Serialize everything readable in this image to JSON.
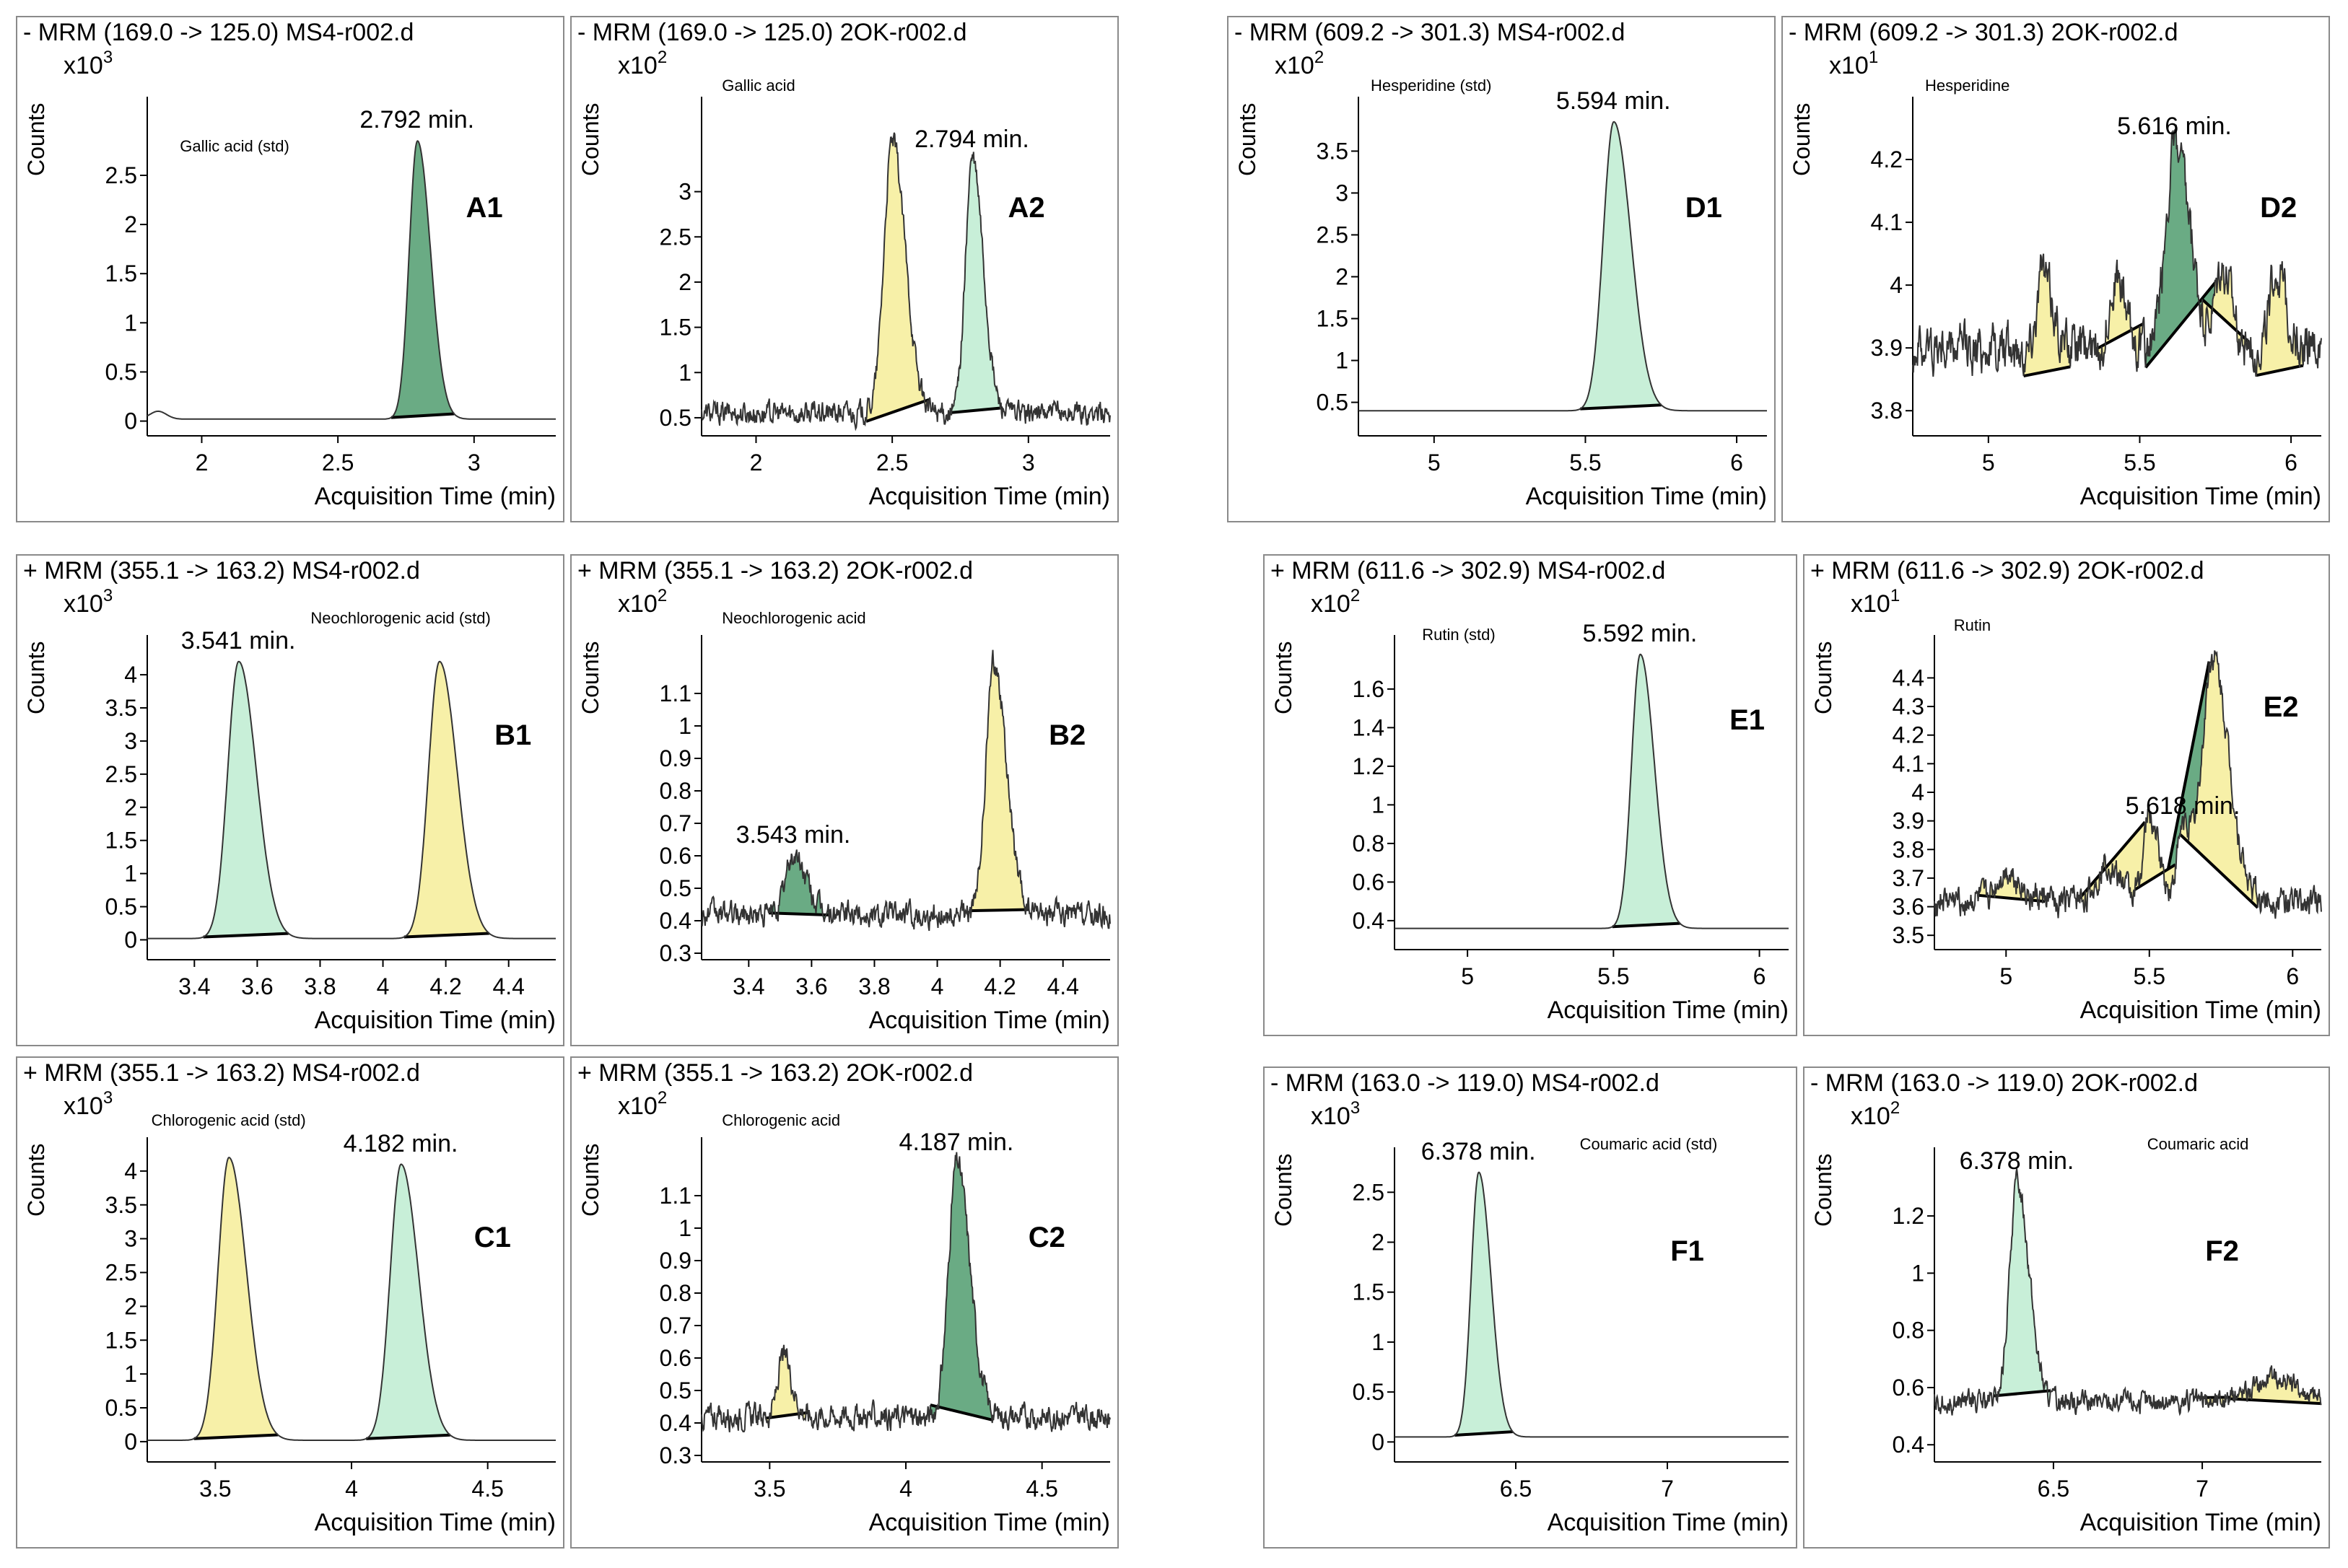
{
  "colors": {
    "yellow_fill": "#f7f0a8",
    "light_green_fill": "#c8efd8",
    "dark_green_fill": "#6aab84",
    "axis": "#000000",
    "trace": "#333333"
  },
  "chart_data": [
    {
      "id": "A1",
      "type": "line",
      "title": "- MRM (169.0 -> 125.0) MS4-r002.d",
      "compound": "Gallic acid (std)",
      "ylabel": "Counts",
      "multiplier": "x10",
      "exponent": "3",
      "xlabel": "Acquisition Time (min)",
      "xlim": [
        1.8,
        3.3
      ],
      "ylim": [
        -0.15,
        3.3
      ],
      "xticks": [
        2,
        2.5,
        3
      ],
      "yticks": [
        0,
        0.5,
        1,
        1.5,
        2,
        2.5
      ],
      "baseline": 0.02,
      "noise": 0,
      "bump": {
        "x": 1.84,
        "h": 0.08,
        "w": 0.03
      },
      "peaks": [
        {
          "rt": 2.792,
          "height": 2.85,
          "width": 0.03,
          "fill": "dark_green",
          "label": "2.792 min."
        }
      ]
    },
    {
      "id": "A2",
      "type": "line",
      "title": "- MRM (169.0 -> 125.0) 2OK-r002.d",
      "compound": "Gallic acid",
      "ylabel": "Counts",
      "multiplier": "x10",
      "exponent": "2",
      "xlabel": "Acquisition Time (min)",
      "xlim": [
        1.8,
        3.3
      ],
      "ylim": [
        0.3,
        4.05
      ],
      "xticks": [
        2,
        2.5,
        3
      ],
      "yticks": [
        0.5,
        1,
        1.5,
        2,
        2.5,
        3
      ],
      "baseline": 0.55,
      "noise": 0.1,
      "peaks": [
        {
          "rt": 2.5,
          "height": 3.55,
          "width": 0.03,
          "fill": "yellow"
        },
        {
          "rt": 2.794,
          "height": 3.35,
          "width": 0.025,
          "fill": "light_green",
          "label": "2.794 min."
        }
      ]
    },
    {
      "id": "B1",
      "type": "line",
      "title": "+ MRM (355.1 -> 163.2) MS4-r002.d",
      "compound": "Neochlorogenic acid  (std)",
      "ylabel": "Counts",
      "multiplier": "x10",
      "exponent": "3",
      "xlabel": "Acquisition Time (min)",
      "xlim": [
        3.25,
        4.55
      ],
      "ylim": [
        -0.3,
        4.6
      ],
      "xticks": [
        3.4,
        3.6,
        3.8,
        4,
        4.2,
        4.4
      ],
      "yticks": [
        0,
        0.5,
        1,
        1.5,
        2,
        2.5,
        3,
        3.5,
        4
      ],
      "baseline": 0.02,
      "noise": 0,
      "peaks": [
        {
          "rt": 3.541,
          "height": 4.2,
          "width": 0.035,
          "fill": "light_green",
          "label": "3.541 min."
        },
        {
          "rt": 4.18,
          "height": 4.2,
          "width": 0.035,
          "fill": "yellow"
        }
      ]
    },
    {
      "id": "B2",
      "type": "line",
      "title": "+ MRM (355.1 -> 163.2) 2OK-r002.d",
      "compound": "Neochlorogenic acid",
      "ylabel": "Counts",
      "multiplier": "x10",
      "exponent": "2",
      "xlabel": "Acquisition Time (min)",
      "xlim": [
        3.25,
        4.55
      ],
      "ylim": [
        0.28,
        1.28
      ],
      "xticks": [
        3.4,
        3.6,
        3.8,
        4,
        4.2,
        4.4
      ],
      "yticks": [
        0.3,
        0.4,
        0.5,
        0.6,
        0.7,
        0.8,
        0.9,
        1,
        1.1
      ],
      "baseline": 0.42,
      "noise": 0.03,
      "peaks": [
        {
          "rt": 3.543,
          "height": 0.6,
          "width": 0.025,
          "fill": "dark_green",
          "label": "3.543 min."
        },
        {
          "rt": 4.18,
          "height": 1.2,
          "width": 0.025,
          "fill": "yellow"
        }
      ]
    },
    {
      "id": "C1",
      "type": "line",
      "title": "+ MRM (355.1 -> 163.2) MS4-r002.d",
      "compound": "Chlorogenic acid  (std)",
      "ylabel": "Counts",
      "multiplier": "x10",
      "exponent": "3",
      "xlabel": "Acquisition Time (min)",
      "xlim": [
        3.25,
        4.75
      ],
      "ylim": [
        -0.3,
        4.5
      ],
      "xticks": [
        3.5,
        4,
        4.5
      ],
      "yticks": [
        0,
        0.5,
        1,
        1.5,
        2,
        2.5,
        3,
        3.5,
        4
      ],
      "baseline": 0.02,
      "noise": 0,
      "peaks": [
        {
          "rt": 3.55,
          "height": 4.2,
          "width": 0.04,
          "fill": "yellow"
        },
        {
          "rt": 4.182,
          "height": 4.1,
          "width": 0.04,
          "fill": "light_green",
          "label": "4.182 min."
        }
      ]
    },
    {
      "id": "C2",
      "type": "line",
      "title": "+ MRM (355.1 -> 163.2) 2OK-r002.d",
      "compound": "Chlorogenic acid",
      "ylabel": "Counts",
      "multiplier": "x10",
      "exponent": "2",
      "xlabel": "Acquisition Time (min)",
      "xlim": [
        3.25,
        4.75
      ],
      "ylim": [
        0.28,
        1.28
      ],
      "xticks": [
        3.5,
        4,
        4.5
      ],
      "yticks": [
        0.3,
        0.4,
        0.5,
        0.6,
        0.7,
        0.8,
        0.9,
        1,
        1.1
      ],
      "baseline": 0.42,
      "noise": 0.03,
      "peaks": [
        {
          "rt": 3.55,
          "height": 0.6,
          "width": 0.02,
          "fill": "yellow"
        },
        {
          "rt": 4.187,
          "height": 1.2,
          "width": 0.03,
          "fill": "dark_green",
          "label": "4.187 min."
        }
      ]
    },
    {
      "id": "D1",
      "type": "line",
      "title": "- MRM (609.2 -> 301.3) MS4-r002.d",
      "compound": "Hesperidine (std)",
      "ylabel": "Counts",
      "multiplier": "x10",
      "exponent": "2",
      "xlabel": "Acquisition Time (min)",
      "xlim": [
        4.75,
        6.1
      ],
      "ylim": [
        0.1,
        4.15
      ],
      "xticks": [
        5,
        5.5,
        6
      ],
      "yticks": [
        0.5,
        1,
        1.5,
        2,
        2.5,
        3,
        3.5
      ],
      "baseline": 0.4,
      "noise": 0,
      "peaks": [
        {
          "rt": 5.594,
          "height": 3.85,
          "width": 0.035,
          "fill": "light_green",
          "label": "5.594 min."
        }
      ]
    },
    {
      "id": "D2",
      "type": "line",
      "title": "- MRM (609.2 -> 301.3) 2OK-r002.d",
      "compound": "Hesperidine",
      "ylabel": "Counts",
      "multiplier": "x10",
      "exponent": "1",
      "xlabel": "Acquisition Time (min)",
      "xlim": [
        4.75,
        6.1
      ],
      "ylim": [
        3.76,
        4.3
      ],
      "xticks": [
        5,
        5.5,
        6
      ],
      "yticks": [
        3.8,
        3.9,
        4,
        4.1,
        4.2
      ],
      "baseline": 3.9,
      "noise": 0.03,
      "peaks": [
        {
          "rt": 5.616,
          "height": 4.22,
          "width": 0.03,
          "fill": "dark_green",
          "label": "5.616 min."
        },
        {
          "rt": 5.18,
          "height": 4.02,
          "width": 0.02,
          "fill": "yellow"
        },
        {
          "rt": 5.42,
          "height": 4.01,
          "width": 0.02,
          "fill": "yellow"
        },
        {
          "rt": 5.77,
          "height": 4.02,
          "width": 0.02,
          "fill": "yellow"
        },
        {
          "rt": 5.95,
          "height": 4.02,
          "width": 0.02,
          "fill": "yellow"
        }
      ]
    },
    {
      "id": "E1",
      "type": "line",
      "title": "+ MRM (611.6 -> 302.9) MS4-r002.d",
      "compound": "Rutin (std)",
      "ylabel": "Counts",
      "multiplier": "x10",
      "exponent": "2",
      "xlabel": "Acquisition Time (min)",
      "xlim": [
        4.75,
        6.1
      ],
      "ylim": [
        0.25,
        1.88
      ],
      "xticks": [
        5,
        5.5,
        6
      ],
      "yticks": [
        0.4,
        0.6,
        0.8,
        1,
        1.2,
        1.4,
        1.6
      ],
      "baseline": 0.36,
      "noise": 0,
      "peaks": [
        {
          "rt": 5.592,
          "height": 1.78,
          "width": 0.03,
          "fill": "light_green",
          "label": "5.592 min."
        }
      ]
    },
    {
      "id": "E2",
      "type": "line",
      "title": "+ MRM (611.6 -> 302.9) 2OK-r002.d",
      "compound": "Rutin",
      "ylabel": "Counts",
      "multiplier": "x10",
      "exponent": "1",
      "xlabel": "Acquisition Time (min)",
      "xlim": [
        4.75,
        6.1
      ],
      "ylim": [
        3.45,
        4.55
      ],
      "xticks": [
        5,
        5.5,
        6
      ],
      "yticks": [
        3.5,
        3.6,
        3.7,
        3.8,
        3.9,
        4,
        4.1,
        4.2,
        4.3,
        4.4
      ],
      "baseline": 3.62,
      "noise": 0.04,
      "peaks": [
        {
          "rt": 5.618,
          "height": 3.88,
          "width": 0.02,
          "fill": "dark_green",
          "label": "5.618 min."
        },
        {
          "rt": 5.5,
          "height": 3.92,
          "width": 0.02,
          "fill": "yellow"
        },
        {
          "rt": 5.72,
          "height": 4.47,
          "width": 0.035,
          "fill": "yellow"
        },
        {
          "rt": 5.35,
          "height": 3.75,
          "width": 0.03,
          "fill": "yellow"
        },
        {
          "rt": 5.0,
          "height": 3.72,
          "width": 0.03,
          "fill": "yellow"
        }
      ]
    },
    {
      "id": "F1",
      "type": "line",
      "title": "- MRM (163.0 -> 119.0) MS4-r002.d",
      "compound": "Coumaric acid (std)",
      "ylabel": "Counts",
      "multiplier": "x10",
      "exponent": "3",
      "xlabel": "Acquisition Time (min)",
      "xlim": [
        6.1,
        7.4
      ],
      "ylim": [
        -0.2,
        2.95
      ],
      "xticks": [
        6.5,
        7
      ],
      "yticks": [
        0,
        0.5,
        1,
        1.5,
        2,
        2.5
      ],
      "baseline": 0.05,
      "noise": 0,
      "peaks": [
        {
          "rt": 6.378,
          "height": 2.7,
          "width": 0.025,
          "fill": "light_green",
          "label": "6.378 min."
        }
      ]
    },
    {
      "id": "F2",
      "type": "line",
      "title": "- MRM (163.0 -> 119.0) 2OK-r002.d",
      "compound": "Coumaric acid",
      "ylabel": "Counts",
      "multiplier": "x10",
      "exponent": "2",
      "xlabel": "Acquisition Time (min)",
      "xlim": [
        6.1,
        7.4
      ],
      "ylim": [
        0.34,
        1.44
      ],
      "xticks": [
        6.5,
        7
      ],
      "yticks": [
        0.4,
        0.6,
        0.8,
        1,
        1.2
      ],
      "baseline": 0.55,
      "noise": 0.03,
      "peaks": [
        {
          "rt": 6.378,
          "height": 1.32,
          "width": 0.025,
          "fill": "light_green",
          "label": "6.378 min."
        },
        {
          "rt": 7.15,
          "height": 0.58,
          "width": 0.05,
          "fill": "yellow"
        },
        {
          "rt": 7.25,
          "height": 0.62,
          "width": 0.05,
          "fill": "yellow"
        }
      ]
    }
  ]
}
